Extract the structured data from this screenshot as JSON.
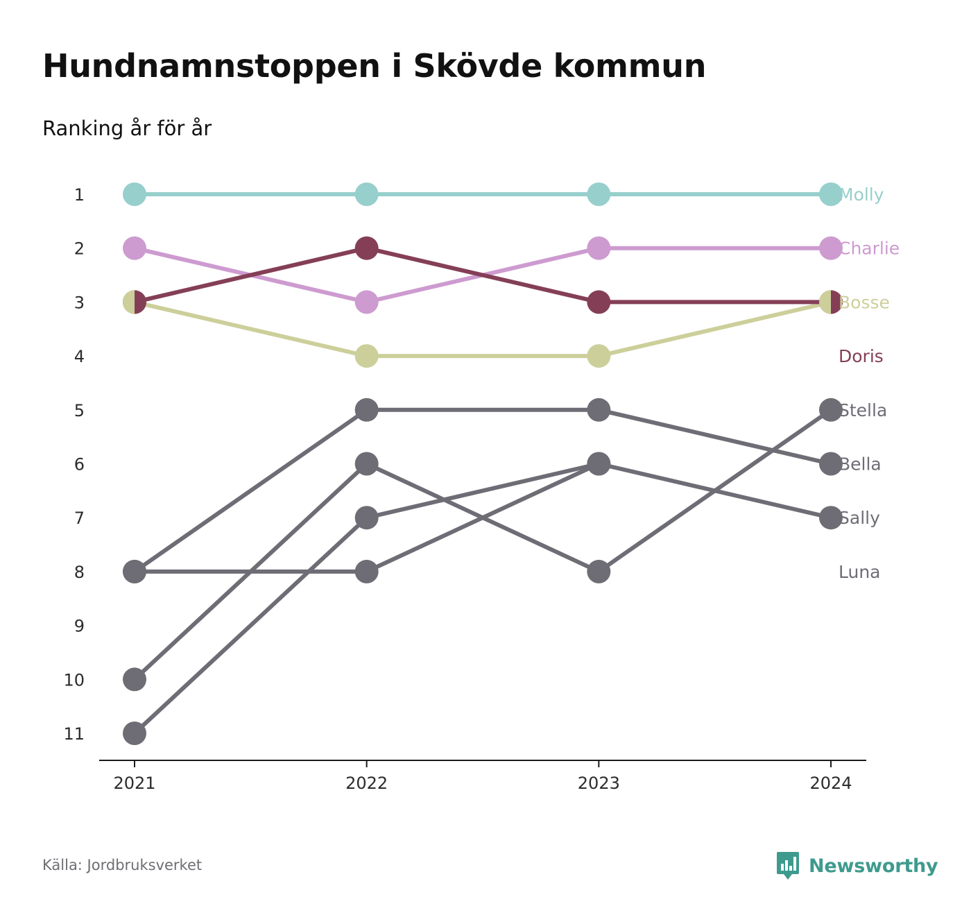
{
  "header": {
    "title": "Hundnamnstoppen i Skövde kommun",
    "subtitle": "Ranking år för år"
  },
  "footer": {
    "source": "Källa: Jordbruksverket",
    "brand": "Newsworthy",
    "brand_icon": "newsworthy-logo-icon",
    "brand_color": "#3f9a8e"
  },
  "chart_data": {
    "type": "line",
    "chart_style": "bump",
    "x": [
      "2021",
      "2022",
      "2023",
      "2024"
    ],
    "y_ticks": [
      "1",
      "2",
      "3",
      "4",
      "5",
      "6",
      "7",
      "8",
      "9",
      "10",
      "11"
    ],
    "ylim": [
      1,
      11
    ],
    "y_reversed": true,
    "grid": false,
    "label_placement": "right",
    "series": [
      {
        "name": "Molly",
        "color": "#97cfcc",
        "values": [
          1,
          1,
          1,
          1
        ]
      },
      {
        "name": "Charlie",
        "color": "#cd9bd0",
        "values": [
          2,
          3,
          2,
          2
        ]
      },
      {
        "name": "Bosse",
        "color": "#cdcf9b",
        "values": [
          3,
          4,
          4,
          3
        ]
      },
      {
        "name": "Doris",
        "color": "#843f56",
        "values": [
          3,
          2,
          3,
          3
        ]
      },
      {
        "name": "Stella",
        "color": "#6e6d75",
        "values": [
          10,
          6,
          8,
          5
        ]
      },
      {
        "name": "Bella",
        "color": "#6e6d75",
        "values": [
          8,
          5,
          5,
          6
        ]
      },
      {
        "name": "Sally",
        "color": "#6e6d75",
        "values": [
          11,
          7,
          6,
          7
        ]
      },
      {
        "name": "Luna",
        "color": "#6e6d75",
        "values": [
          8,
          8,
          6,
          null
        ]
      }
    ]
  }
}
